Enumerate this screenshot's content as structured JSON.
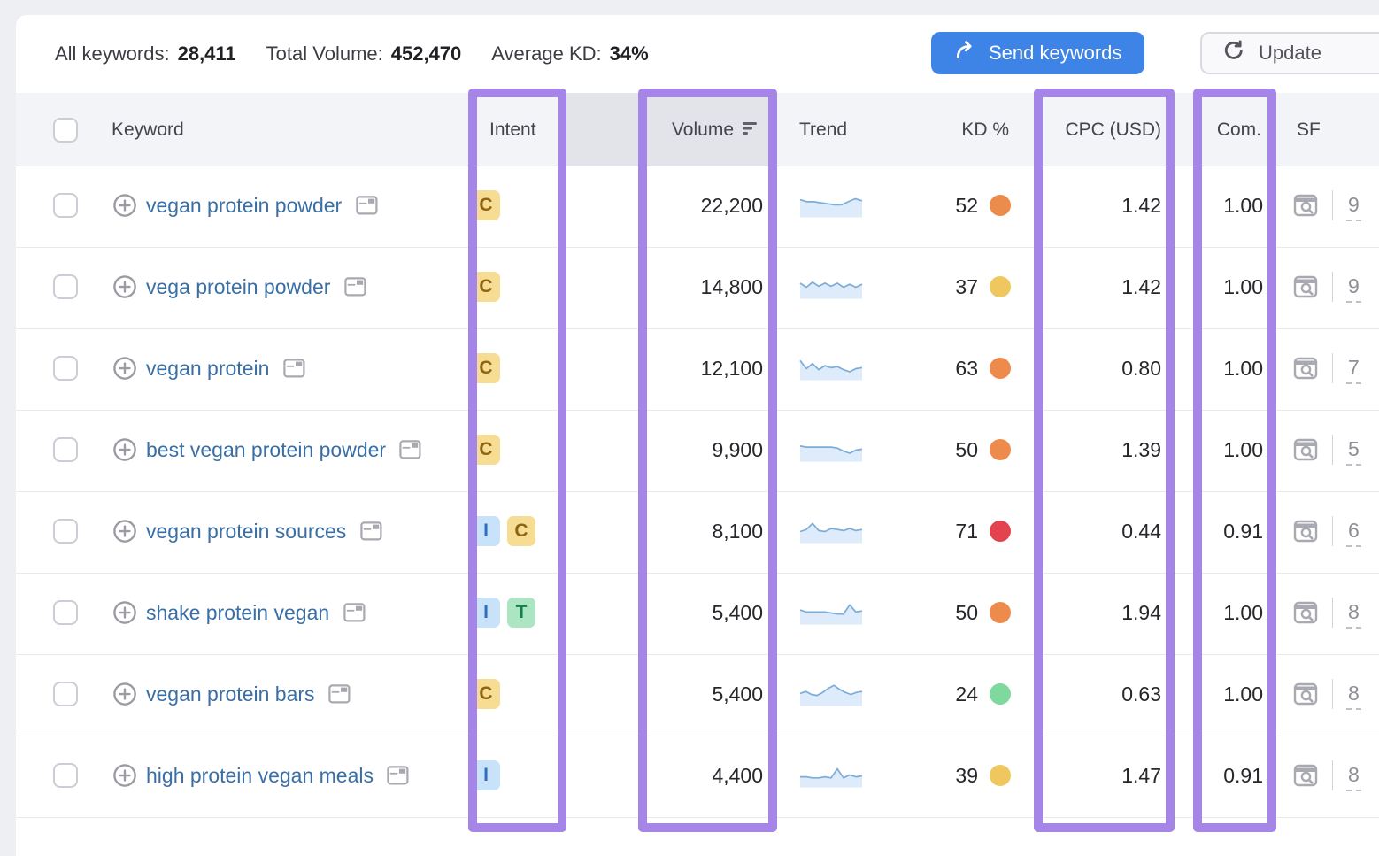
{
  "summary": {
    "all_keywords_label": "All keywords:",
    "all_keywords_value": "28,411",
    "total_volume_label": "Total Volume:",
    "total_volume_value": "452,470",
    "avg_kd_label": "Average KD:",
    "avg_kd_value": "34%"
  },
  "actions": {
    "send_keywords": "Send keywords",
    "update": "Update"
  },
  "table": {
    "headers": {
      "keyword": "Keyword",
      "intent": "Intent",
      "volume": "Volume",
      "trend": "Trend",
      "kd": "KD %",
      "cpc": "CPC (USD)",
      "com": "Com.",
      "sf": "SF"
    },
    "sorted_column": "volume"
  },
  "intent_types": {
    "C": {
      "label": "C",
      "bg": "#f7dd94",
      "fg": "#8f6410"
    },
    "I": {
      "label": "I",
      "bg": "#c8e2fa",
      "fg": "#2e6fbe"
    },
    "T": {
      "label": "T",
      "bg": "#abe5c2",
      "fg": "#15804e"
    }
  },
  "kd_colors": {
    "green": "#7fd89e",
    "yellow": "#eec85e",
    "orange": "#ed8b4d",
    "red": "#e2434f"
  },
  "colors": {
    "annotation_purple": "#a685e8",
    "send_button_blue": "#3e84e7",
    "keyword_link_blue": "#3a6fa5",
    "sparkline_stroke": "#7badda",
    "sparkline_fill": "#ddebfb"
  },
  "chart_data": {
    "type": "line",
    "note": "per-row 12-month search trend sparklines, relative scale 0-10",
    "series_key": "rows[].trend"
  },
  "rows": [
    {
      "keyword": "vegan protein powder",
      "intents": [
        "C"
      ],
      "volume": "22,200",
      "trend": [
        8,
        7,
        7,
        6.5,
        6,
        5.5,
        5.5,
        7,
        8.5,
        7.5
      ],
      "kd": "52",
      "kd_level": "orange",
      "cpc": "1.42",
      "com": "1.00",
      "sf": "9"
    },
    {
      "keyword": "vega protein powder",
      "intents": [
        "C"
      ],
      "volume": "14,800",
      "trend": [
        7,
        5,
        7.5,
        5.5,
        7,
        5.5,
        7,
        5,
        6.5,
        5,
        6.5
      ],
      "kd": "37",
      "kd_level": "yellow",
      "cpc": "1.42",
      "com": "1.00",
      "sf": "9"
    },
    {
      "keyword": "vegan protein",
      "intents": [
        "C"
      ],
      "volume": "12,100",
      "trend": [
        9,
        5,
        7.5,
        4.5,
        6.5,
        5.5,
        6,
        4.5,
        3.5,
        5,
        5.5
      ],
      "kd": "63",
      "kd_level": "orange",
      "cpc": "0.80",
      "com": "1.00",
      "sf": "7"
    },
    {
      "keyword": "best vegan protein powder",
      "intents": [
        "C"
      ],
      "volume": "9,900",
      "trend": [
        7,
        6.5,
        6.5,
        6.5,
        6.5,
        6.5,
        6,
        4.5,
        3.5,
        5,
        5.5
      ],
      "kd": "50",
      "kd_level": "orange",
      "cpc": "1.39",
      "com": "1.00",
      "sf": "5"
    },
    {
      "keyword": "vegan protein sources",
      "intents": [
        "I",
        "C"
      ],
      "volume": "8,100",
      "trend": [
        5,
        6,
        9,
        5.5,
        5,
        6.5,
        6,
        5.5,
        6.5,
        5.5,
        6
      ],
      "kd": "71",
      "kd_level": "red",
      "cpc": "0.44",
      "com": "0.91",
      "sf": "6"
    },
    {
      "keyword": "shake protein vegan",
      "intents": [
        "I",
        "T"
      ],
      "volume": "5,400",
      "trend": [
        6.5,
        5.5,
        5.5,
        5.5,
        5.5,
        5,
        4.5,
        4.5,
        9,
        5.5,
        6
      ],
      "kd": "50",
      "kd_level": "orange",
      "cpc": "1.94",
      "com": "1.00",
      "sf": "8"
    },
    {
      "keyword": "vegan protein bars",
      "intents": [
        "C"
      ],
      "volume": "5,400",
      "trend": [
        5.5,
        6.5,
        5,
        4.5,
        6,
        8,
        9.5,
        7.5,
        6,
        5,
        6,
        6.5
      ],
      "kd": "24",
      "kd_level": "green",
      "cpc": "0.63",
      "com": "1.00",
      "sf": "8"
    },
    {
      "keyword": "high protein vegan meals",
      "intents": [
        "I"
      ],
      "volume": "4,400",
      "trend": [
        4.5,
        4.5,
        4,
        4,
        4.5,
        4,
        8.5,
        4,
        5.5,
        4.5,
        5
      ],
      "kd": "39",
      "kd_level": "yellow",
      "cpc": "1.47",
      "com": "0.91",
      "sf": "8"
    }
  ]
}
